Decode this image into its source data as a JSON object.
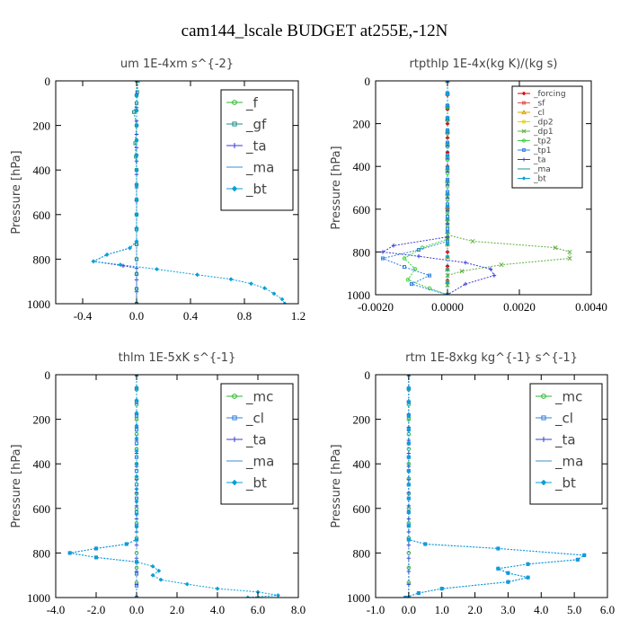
{
  "title": "cam144_lscale  BUDGET at255E,-12N",
  "chart_data": [
    {
      "type": "line",
      "title": "um  1E-4xm s^{-2}",
      "ylabel": "Pressure [hPa]",
      "xlim": [
        -0.6,
        1.2
      ],
      "xticks": [
        -0.4,
        0.0,
        0.4,
        0.8,
        1.2
      ],
      "xtick_labels": [
        "-0.4",
        "0.0",
        "0.4",
        "0.8",
        "1.2"
      ],
      "ylim": [
        1000,
        0
      ],
      "yticks": [
        0,
        200,
        400,
        600,
        800,
        1000
      ],
      "legend_position": "top-right",
      "legend_size": "large",
      "series": [
        {
          "name": "_f",
          "color": "#2db82d",
          "marker": "circle",
          "points": [
            [
              0.0,
              0
            ],
            [
              0.0,
              200
            ],
            [
              0.0,
              400
            ],
            [
              0.0,
              600
            ],
            [
              0.0,
              800
            ],
            [
              0.0,
              1000
            ]
          ]
        },
        {
          "name": "_gf",
          "color": "#1f8f8f",
          "marker": "square",
          "points": [
            [
              0.01,
              0
            ],
            [
              0.0,
              100
            ],
            [
              -0.02,
              140
            ],
            [
              0.0,
              200
            ],
            [
              -0.01,
              280
            ],
            [
              0.0,
              400
            ],
            [
              0.0,
              600
            ],
            [
              0.0,
              800
            ],
            [
              0.0,
              1000
            ]
          ]
        },
        {
          "name": "_ta",
          "color": "#3a3ad8",
          "marker": "plus",
          "points": [
            [
              0.0,
              0
            ],
            [
              0.0,
              300
            ],
            [
              0.0,
              600
            ],
            [
              0.0,
              720
            ],
            [
              -0.05,
              750
            ],
            [
              -0.22,
              780
            ],
            [
              -0.32,
              810
            ],
            [
              -0.1,
              830
            ],
            [
              0.0,
              840
            ],
            [
              0.0,
              1000
            ]
          ]
        },
        {
          "name": "_ma",
          "color": "#3a90d0",
          "marker": "none",
          "points": [
            [
              0.0,
              0
            ],
            [
              0.0,
              1000
            ]
          ]
        },
        {
          "name": "_bt",
          "color": "#0aa0d8",
          "marker": "diamond",
          "points": [
            [
              0.0,
              0
            ],
            [
              0.0,
              200
            ],
            [
              0.0,
              400
            ],
            [
              0.0,
              600
            ],
            [
              0.0,
              720
            ],
            [
              -0.05,
              750
            ],
            [
              -0.22,
              780
            ],
            [
              -0.32,
              810
            ],
            [
              -0.12,
              825
            ],
            [
              0.15,
              845
            ],
            [
              0.45,
              870
            ],
            [
              0.7,
              890
            ],
            [
              0.85,
              910
            ],
            [
              0.95,
              930
            ],
            [
              1.02,
              955
            ],
            [
              1.08,
              980
            ],
            [
              1.1,
              1000
            ]
          ]
        }
      ]
    },
    {
      "type": "line",
      "title": "rtpthlp  1E-4x(kg K)/(kg s)",
      "ylabel": "Pressure [hPa]",
      "xlim": [
        -0.002,
        0.004
      ],
      "xticks": [
        -0.002,
        0.0,
        0.002,
        0.004
      ],
      "xtick_labels": [
        "-0.0020",
        "0.0000",
        "0.0020",
        "0.0040"
      ],
      "ylim": [
        1000,
        0
      ],
      "yticks": [
        0,
        200,
        400,
        600,
        800,
        1000
      ],
      "legend_position": "top-right",
      "legend_size": "small",
      "series": [
        {
          "name": "_forcing",
          "color": "#e00000",
          "marker": "diamond",
          "points": [
            [
              0.0,
              0
            ],
            [
              0.0,
              200
            ],
            [
              0.0,
              400
            ],
            [
              0.0,
              600
            ],
            [
              0.0,
              800
            ],
            [
              0.0,
              1000
            ]
          ]
        },
        {
          "name": "_sf",
          "color": "#e05050",
          "marker": "square",
          "points": [
            [
              0.0,
              0
            ],
            [
              0.0,
              1000
            ]
          ]
        },
        {
          "name": "_cl",
          "color": "#e0a000",
          "marker": "triangle",
          "points": [
            [
              0.0,
              0
            ],
            [
              0.0,
              1000
            ]
          ]
        },
        {
          "name": "_dp2",
          "color": "#e8d000",
          "marker": "circle",
          "points": [
            [
              0.0,
              0
            ],
            [
              0.0,
              1000
            ]
          ]
        },
        {
          "name": "_dp1",
          "color": "#60b040",
          "marker": "cross",
          "points": [
            [
              0.0,
              0
            ],
            [
              0.0,
              720
            ],
            [
              0.0007,
              750
            ],
            [
              0.003,
              780
            ],
            [
              0.0034,
              800
            ],
            [
              0.0034,
              830
            ],
            [
              0.0015,
              860
            ],
            [
              0.0004,
              890
            ],
            [
              0.0,
              910
            ],
            [
              0.0,
              1000
            ]
          ]
        },
        {
          "name": "_tp2",
          "color": "#40d040",
          "marker": "circle",
          "points": [
            [
              0.0,
              0
            ],
            [
              0.0,
              740
            ],
            [
              -0.0007,
              780
            ],
            [
              -0.0012,
              830
            ],
            [
              -0.0009,
              880
            ],
            [
              -0.0011,
              930
            ],
            [
              -0.0005,
              970
            ],
            [
              0.0,
              1000
            ]
          ]
        },
        {
          "name": "_tp1",
          "color": "#3080e0",
          "marker": "square",
          "points": [
            [
              0.0,
              0
            ],
            [
              0.0,
              750
            ],
            [
              -0.0008,
              790
            ],
            [
              -0.0018,
              830
            ],
            [
              -0.0012,
              870
            ],
            [
              -0.0005,
              910
            ],
            [
              -0.001,
              950
            ],
            [
              0.0,
              1000
            ]
          ]
        },
        {
          "name": "_ta",
          "color": "#3a3ad8",
          "marker": "plus",
          "points": [
            [
              0.0,
              0
            ],
            [
              0.0,
              730
            ],
            [
              -0.0015,
              770
            ],
            [
              -0.0018,
              800
            ],
            [
              -0.0008,
              820
            ],
            [
              0.0005,
              850
            ],
            [
              0.0012,
              880
            ],
            [
              0.0013,
              910
            ],
            [
              0.0005,
              950
            ],
            [
              0.0,
              1000
            ]
          ]
        },
        {
          "name": "_ma",
          "color": "#2090a0",
          "marker": "none",
          "points": [
            [
              0.0,
              0
            ],
            [
              0.0,
              1000
            ]
          ]
        },
        {
          "name": "_bt",
          "color": "#0aa0d8",
          "marker": "diamond",
          "points": [
            [
              0.0,
              0
            ],
            [
              0.0,
              1000
            ]
          ]
        }
      ]
    },
    {
      "type": "line",
      "title": "thlm  1E-5xK s^{-1}",
      "ylabel": "Pressure [hPa]",
      "xlim": [
        -4.0,
        8.0
      ],
      "xticks": [
        -4.0,
        -2.0,
        0.0,
        2.0,
        4.0,
        6.0,
        8.0
      ],
      "xtick_labels": [
        "-4.0",
        "-2.0",
        "0.0",
        "2.0",
        "4.0",
        "6.0",
        "8.0"
      ],
      "ylim": [
        1000,
        0
      ],
      "yticks": [
        0,
        200,
        400,
        600,
        800,
        1000
      ],
      "legend_position": "top-right",
      "legend_size": "large",
      "series": [
        {
          "name": "_mc",
          "color": "#2db82d",
          "marker": "circle",
          "points": [
            [
              0.0,
              0
            ],
            [
              0.0,
              200
            ],
            [
              0.0,
              400
            ],
            [
              0.0,
              600
            ],
            [
              0.0,
              800
            ],
            [
              0.0,
              1000
            ]
          ]
        },
        {
          "name": "_cl",
          "color": "#3080e0",
          "marker": "square",
          "points": [
            [
              0.0,
              0
            ],
            [
              0.0,
              740
            ],
            [
              -0.5,
              760
            ],
            [
              -2.0,
              780
            ],
            [
              -3.3,
              800
            ],
            [
              -2.0,
              820
            ],
            [
              0.0,
              840
            ],
            [
              0.0,
              1000
            ]
          ]
        },
        {
          "name": "_ta",
          "color": "#3a3ad8",
          "marker": "plus",
          "points": [
            [
              0.0,
              0
            ],
            [
              0.0,
              1000
            ]
          ]
        },
        {
          "name": "_ma",
          "color": "#3a90d0",
          "marker": "none",
          "points": [
            [
              0.0,
              0
            ],
            [
              0.0,
              1000
            ]
          ]
        },
        {
          "name": "_bt",
          "color": "#0aa0d8",
          "marker": "diamond",
          "points": [
            [
              0.0,
              0
            ],
            [
              0.0,
              400
            ],
            [
              0.0,
              740
            ],
            [
              -0.5,
              760
            ],
            [
              -2.0,
              780
            ],
            [
              -3.3,
              800
            ],
            [
              -2.0,
              820
            ],
            [
              0.0,
              840
            ],
            [
              0.8,
              860
            ],
            [
              1.1,
              880
            ],
            [
              0.8,
              900
            ],
            [
              1.2,
              920
            ],
            [
              2.5,
              940
            ],
            [
              4.0,
              960
            ],
            [
              6.0,
              975
            ],
            [
              7.0,
              990
            ],
            [
              5.5,
              1000
            ]
          ]
        }
      ]
    },
    {
      "type": "line",
      "title": "rtm  1E-8xkg kg^{-1} s^{-1}",
      "ylabel": "Pressure [hPa]",
      "xlim": [
        -1.0,
        6.0
      ],
      "xticks": [
        -1.0,
        0.0,
        1.0,
        2.0,
        3.0,
        4.0,
        5.0,
        6.0
      ],
      "xtick_labels": [
        "-1.0",
        "0.0",
        "1.0",
        "2.0",
        "3.0",
        "4.0",
        "5.0",
        "6.0"
      ],
      "ylim": [
        1000,
        0
      ],
      "yticks": [
        0,
        200,
        400,
        600,
        800,
        1000
      ],
      "legend_position": "top-right",
      "legend_size": "large",
      "series": [
        {
          "name": "_mc",
          "color": "#2db82d",
          "marker": "circle",
          "points": [
            [
              0.0,
              0
            ],
            [
              0.0,
              200
            ],
            [
              0.0,
              400
            ],
            [
              0.0,
              600
            ],
            [
              0.0,
              800
            ],
            [
              0.0,
              1000
            ]
          ]
        },
        {
          "name": "_cl",
          "color": "#3080e0",
          "marker": "square",
          "points": [
            [
              0.0,
              0
            ],
            [
              0.0,
              740
            ],
            [
              0.5,
              760
            ],
            [
              2.7,
              780
            ],
            [
              5.3,
              810
            ],
            [
              5.1,
              830
            ],
            [
              3.6,
              850
            ],
            [
              2.7,
              870
            ],
            [
              3.0,
              890
            ],
            [
              3.6,
              910
            ],
            [
              3.0,
              930
            ],
            [
              1.0,
              960
            ],
            [
              0.3,
              980
            ],
            [
              -0.1,
              1000
            ]
          ]
        },
        {
          "name": "_ta",
          "color": "#3a3ad8",
          "marker": "plus",
          "points": [
            [
              0.0,
              0
            ],
            [
              0.0,
              1000
            ]
          ]
        },
        {
          "name": "_ma",
          "color": "#3a90d0",
          "marker": "none",
          "points": [
            [
              0.0,
              0
            ],
            [
              0.0,
              1000
            ]
          ]
        },
        {
          "name": "_bt",
          "color": "#0aa0d8",
          "marker": "diamond",
          "points": [
            [
              0.0,
              0
            ],
            [
              0.0,
              740
            ],
            [
              0.5,
              760
            ],
            [
              2.7,
              780
            ],
            [
              5.3,
              810
            ],
            [
              5.1,
              830
            ],
            [
              3.6,
              850
            ],
            [
              2.7,
              870
            ],
            [
              3.0,
              890
            ],
            [
              3.6,
              910
            ],
            [
              3.0,
              930
            ],
            [
              1.0,
              960
            ],
            [
              0.3,
              980
            ],
            [
              -0.1,
              1000
            ]
          ]
        }
      ]
    }
  ]
}
